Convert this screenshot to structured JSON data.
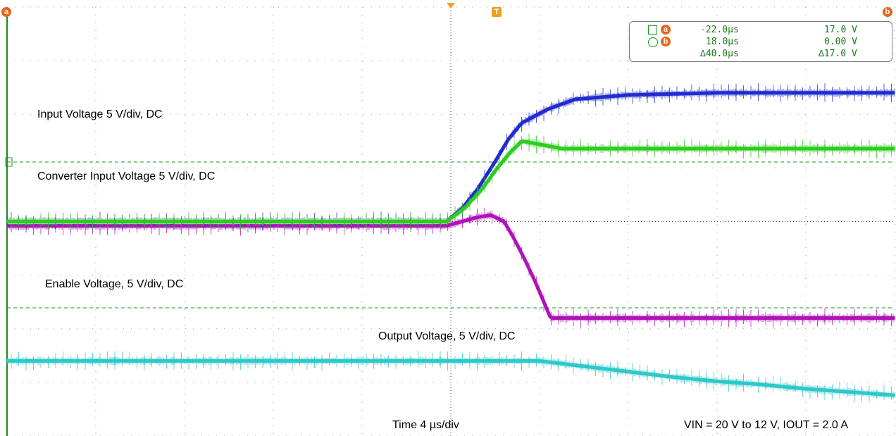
{
  "chart_data": {
    "type": "line",
    "title": "",
    "xlabel": "Time 4 µs/div",
    "ylabel": "",
    "x_unit": "µs",
    "x_range": [
      -20,
      20
    ],
    "divisions": {
      "x": 10,
      "y": 8
    },
    "grid": true,
    "series": [
      {
        "name": "Input Voltage 5 V/div, DC",
        "color": "#1f2ccf",
        "x": [
          -20,
          -0.2,
          0.5,
          1.2,
          2.0,
          2.6,
          3.2,
          4.4,
          5.6,
          8,
          12,
          16,
          20
        ],
        "y": [
          20.0,
          20.0,
          21.2,
          23.0,
          25.6,
          27.7,
          29.2,
          30.5,
          31.4,
          31.8,
          32.0,
          32.0,
          32.0
        ]
      },
      {
        "name": "Converter Input Voltage 5 V/div, DC",
        "color": "#2ecc1e",
        "x": [
          -20,
          -0.2,
          0.6,
          1.4,
          2.1,
          2.7,
          3.2,
          4.0,
          5.0,
          8,
          12,
          16,
          20
        ],
        "y": [
          20.0,
          20.0,
          21.2,
          23.0,
          25.0,
          26.5,
          27.5,
          27.2,
          26.8,
          26.8,
          26.8,
          26.8,
          26.8
        ]
      },
      {
        "name": "Enable Voltage, 5 V/div, DC",
        "color": "#b012b8",
        "x": [
          -20,
          -0.2,
          0.5,
          1.2,
          1.8,
          2.4,
          2.8,
          3.3,
          3.8,
          4.5,
          8,
          12,
          20
        ],
        "y": [
          19.6,
          19.6,
          20.0,
          20.4,
          20.6,
          20.0,
          18.6,
          16.6,
          14.4,
          11.0,
          11.0,
          11.0,
          11.0
        ]
      },
      {
        "name": "Output Voltage, 5 V/div, DC",
        "color": "#2ec8c8",
        "x": [
          -20,
          0,
          3,
          4.0,
          6,
          8,
          10,
          12,
          14,
          16,
          18,
          20
        ],
        "y": [
          7.0,
          7.0,
          7.0,
          7.0,
          6.5,
          6.0,
          5.5,
          5.1,
          4.8,
          4.4,
          4.1,
          3.8
        ]
      }
    ],
    "cursors": {
      "a": {
        "time": "-22.0µs",
        "voltage": "17.0 V"
      },
      "b": {
        "time": "18.0µs",
        "voltage": "0.00 V"
      },
      "delta": {
        "time": "∆40.0µs",
        "voltage": "∆17.0 V"
      }
    },
    "annotations": {
      "input_voltage": "Input Voltage 5 V/div, DC",
      "converter_input": "Converter Input Voltage 5 V/div, DC",
      "enable_voltage": "Enable Voltage, 5 V/div, DC",
      "output_voltage": "Output Voltage, 5 V/div, DC",
      "time_base": "Time 4 µs/div",
      "conditions": "VIN = 20 V to 12 V, IOUT = 2.0 A"
    },
    "markers": {
      "a": "a",
      "b": "b",
      "trigger": "T"
    }
  }
}
